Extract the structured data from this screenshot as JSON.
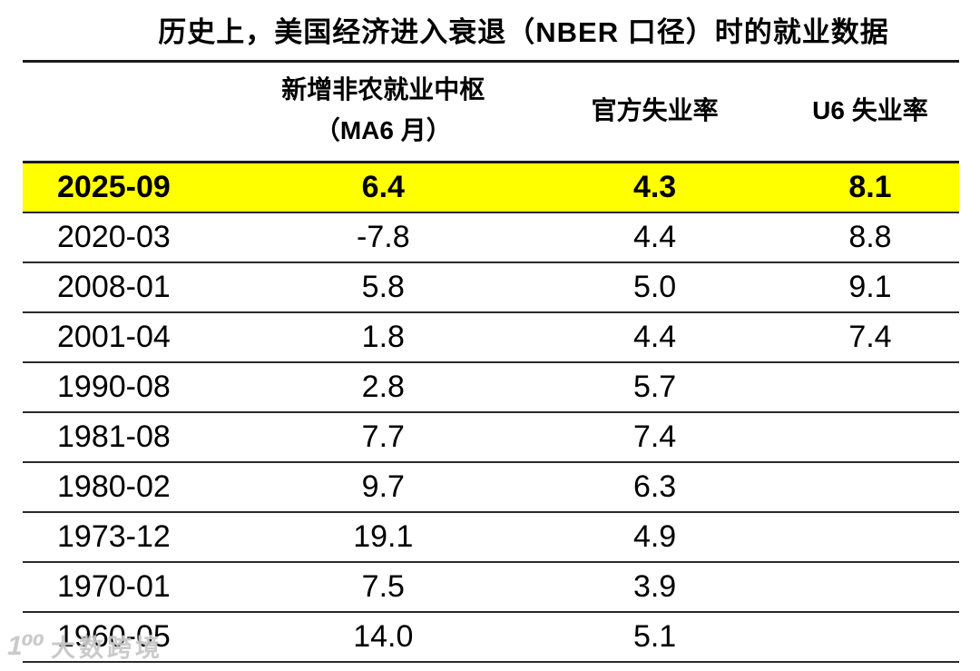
{
  "title": "历史上，美国经济进入衰退（NBER 口径）时的就业数据",
  "table": {
    "header": {
      "date": "",
      "nfp_line1": "新增非农就业中枢",
      "nfp_line2": "（MA6 月）",
      "u3": "官方失业率",
      "u6": "U6 失业率"
    },
    "highlight_color": "#ffff00",
    "rows": [
      {
        "date": "2025-09",
        "nfp": "6.4",
        "u3": "4.3",
        "u6": "8.1"
      },
      {
        "date": "2020-03",
        "nfp": "-7.8",
        "u3": "4.4",
        "u6": "8.8"
      },
      {
        "date": "2008-01",
        "nfp": "5.8",
        "u3": "5.0",
        "u6": "9.1"
      },
      {
        "date": "2001-04",
        "nfp": "1.8",
        "u3": "4.4",
        "u6": "7.4"
      },
      {
        "date": "1990-08",
        "nfp": "2.8",
        "u3": "5.7",
        "u6": ""
      },
      {
        "date": "1981-08",
        "nfp": "7.7",
        "u3": "7.4",
        "u6": ""
      },
      {
        "date": "1980-02",
        "nfp": "9.7",
        "u3": "6.3",
        "u6": ""
      },
      {
        "date": "1973-12",
        "nfp": "19.1",
        "u3": "4.9",
        "u6": ""
      },
      {
        "date": "1970-01",
        "nfp": "7.5",
        "u3": "3.9",
        "u6": ""
      },
      {
        "date": "1960-05",
        "nfp": "14.0",
        "u3": "5.1",
        "u6": ""
      }
    ]
  },
  "watermark": {
    "logo": "1⁰⁰",
    "text": "大数跨境"
  },
  "chart_data": {
    "type": "table",
    "title": "历史上，美国经济进入衰退（NBER 口径）时的就业数据",
    "columns": [
      "",
      "新增非农就业中枢（MA6 月）",
      "官方失业率",
      "U6 失业率"
    ],
    "rows": [
      [
        "2025-09",
        6.4,
        4.3,
        8.1
      ],
      [
        "2020-03",
        -7.8,
        4.4,
        8.8
      ],
      [
        "2008-01",
        5.8,
        5.0,
        9.1
      ],
      [
        "2001-04",
        1.8,
        4.4,
        7.4
      ],
      [
        "1990-08",
        2.8,
        5.7,
        null
      ],
      [
        "1981-08",
        7.7,
        7.4,
        null
      ],
      [
        "1980-02",
        9.7,
        6.3,
        null
      ],
      [
        "1973-12",
        19.1,
        4.9,
        null
      ],
      [
        "1970-01",
        7.5,
        3.9,
        null
      ],
      [
        "1960-05",
        14.0,
        5.1,
        null
      ]
    ],
    "highlighted_row": "2025-09",
    "layout": {
      "grid": "horizontal-rules-only",
      "highlight": "first row yellow bold"
    }
  }
}
